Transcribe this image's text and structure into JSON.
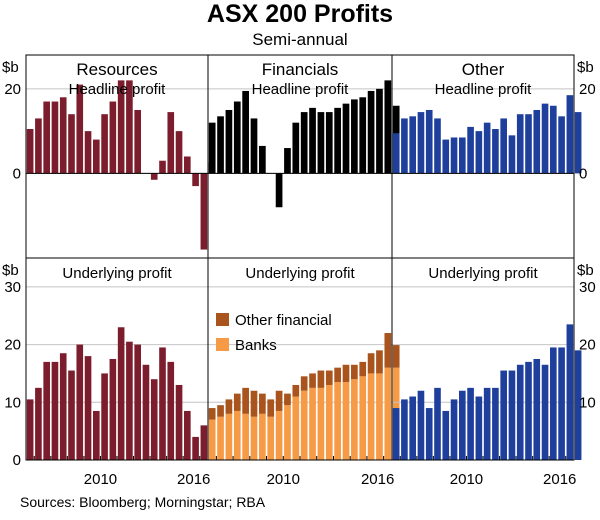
{
  "title": "ASX 200 Profits",
  "subtitle": "Semi-annual",
  "source": "Sources:   Bloomberg; Morningstar; RBA",
  "axis_unit_left": "$b",
  "axis_unit_right": "$b",
  "x_ticks": [
    "2010",
    "2016"
  ],
  "colors": {
    "resources": "#7b1d2c",
    "banks": "#f79a45",
    "other_financial": "#a8541c",
    "other": "#1f3f9c"
  },
  "chart_data": [
    {
      "type": "bar",
      "panel": "resources-headline",
      "title": "Resources",
      "subtitle": "Headline profit",
      "ylim": [
        -20,
        28
      ],
      "yticks": [
        0,
        20
      ],
      "yticks_right": [],
      "x_start": 2005.5,
      "x_end": 2016.5,
      "x_first_bar": 2005.75,
      "values": [
        10.5,
        13,
        17,
        17,
        18,
        14,
        21,
        10,
        8,
        14,
        17,
        22,
        22,
        15,
        0,
        -1.5,
        3,
        14.5,
        10,
        4,
        -3,
        -18,
        2.5
      ]
    },
    {
      "type": "bar",
      "panel": "financials-headline",
      "title": "Financials",
      "subtitle": "Headline profit",
      "ylim": [
        -20,
        28
      ],
      "yticks": [],
      "yticks_right": [],
      "x_start": 2005.5,
      "x_end": 2016.5,
      "x_first_bar": 2005.75,
      "values": [
        12,
        13.5,
        15,
        17,
        19.5,
        13,
        6.5,
        0,
        -8,
        6,
        12,
        14.5,
        15.5,
        14.5,
        14.5,
        15.5,
        16.5,
        17.5,
        18,
        19.5,
        20,
        22,
        16
      ]
    },
    {
      "type": "bar",
      "panel": "other-headline",
      "title": "Other",
      "subtitle": "Headline profit",
      "ylim": [
        -20,
        28
      ],
      "yticks": [],
      "yticks_right": [
        0,
        20
      ],
      "x_start": 2005.5,
      "x_end": 2016.5,
      "x_first_bar": 2005.75,
      "values": [
        9.5,
        13,
        13.5,
        14.5,
        15,
        13,
        8,
        8.5,
        8.5,
        11,
        10,
        12,
        10.5,
        13,
        9,
        14,
        14,
        15,
        16.5,
        16,
        13.5,
        18.5,
        14.5
      ]
    },
    {
      "type": "bar",
      "panel": "resources-underlying",
      "title": "",
      "subtitle": "Underlying profit",
      "ylim": [
        0,
        35
      ],
      "yticks": [
        0,
        10,
        20,
        30
      ],
      "yticks_right": [],
      "x_start": 2005.5,
      "x_end": 2016.5,
      "x_first_bar": 2005.75,
      "values": [
        10.5,
        12.5,
        17,
        17,
        18.5,
        15.5,
        20,
        18,
        8.5,
        15,
        17.5,
        23,
        20.5,
        20,
        16.5,
        14,
        19.5,
        17,
        13,
        8.5,
        4,
        6
      ]
    },
    {
      "type": "stacked-bar",
      "panel": "financials-underlying",
      "title": "",
      "subtitle": "Underlying profit",
      "ylim": [
        0,
        35
      ],
      "yticks": [],
      "yticks_right": [],
      "x_start": 2005.5,
      "x_end": 2016.5,
      "x_first_bar": 2005.75,
      "legend": [
        "Other financial",
        "Banks"
      ],
      "series": [
        {
          "name": "Banks",
          "values": [
            7,
            7.5,
            8,
            8.5,
            8,
            7.5,
            8,
            7.5,
            8.5,
            9.5,
            11,
            12,
            12.5,
            12.5,
            13,
            13.5,
            13.5,
            14,
            14.5,
            15,
            15,
            16,
            16
          ]
        },
        {
          "name": "Other financial",
          "values": [
            2,
            2,
            2.5,
            3,
            4.5,
            4.5,
            3.5,
            3,
            3.5,
            2,
            2,
            2.5,
            2.5,
            3,
            2.5,
            2.5,
            3,
            2.5,
            2.5,
            3.5,
            4,
            6,
            4
          ]
        }
      ]
    },
    {
      "type": "bar",
      "panel": "other-underlying",
      "title": "",
      "subtitle": "Underlying profit",
      "ylim": [
        0,
        35
      ],
      "yticks": [],
      "yticks_right": [
        10,
        20,
        30
      ],
      "x_start": 2005.5,
      "x_end": 2016.5,
      "x_first_bar": 2005.75,
      "values": [
        9,
        10.5,
        11,
        12,
        9,
        12.5,
        8.5,
        10.5,
        12,
        12.5,
        11,
        12.5,
        12.5,
        15.5,
        15.5,
        16.5,
        17,
        17.5,
        16.5,
        19.5,
        19.5,
        23.5,
        19
      ]
    }
  ]
}
